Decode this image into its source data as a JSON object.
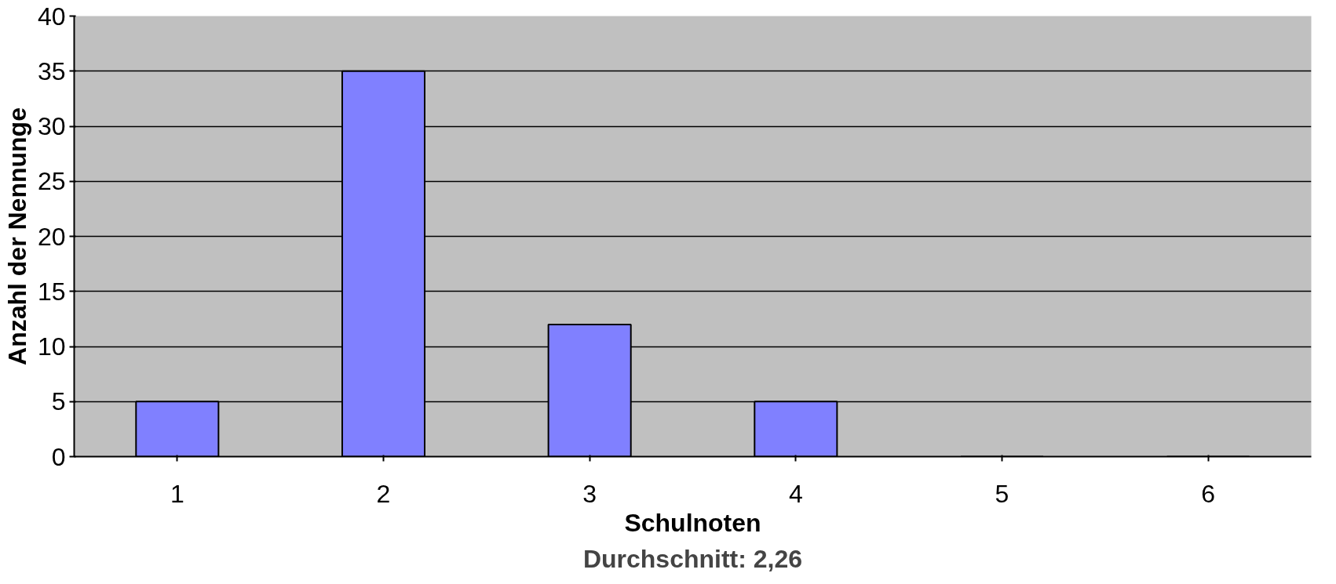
{
  "chart_data": {
    "type": "bar",
    "categories": [
      "1",
      "2",
      "3",
      "4",
      "5",
      "6"
    ],
    "values": [
      5,
      35,
      12,
      5,
      0,
      0
    ],
    "color": "#8080ff",
    "xlabel": "Schulnoten",
    "ylabel": "Anzahl der Nennunge",
    "annotations": [
      "Durchschnitt: 2,26"
    ],
    "ylim": [
      0,
      40
    ],
    "yticks": [
      0,
      5,
      10,
      15,
      20,
      25,
      30,
      35,
      40
    ],
    "grid": "y"
  }
}
